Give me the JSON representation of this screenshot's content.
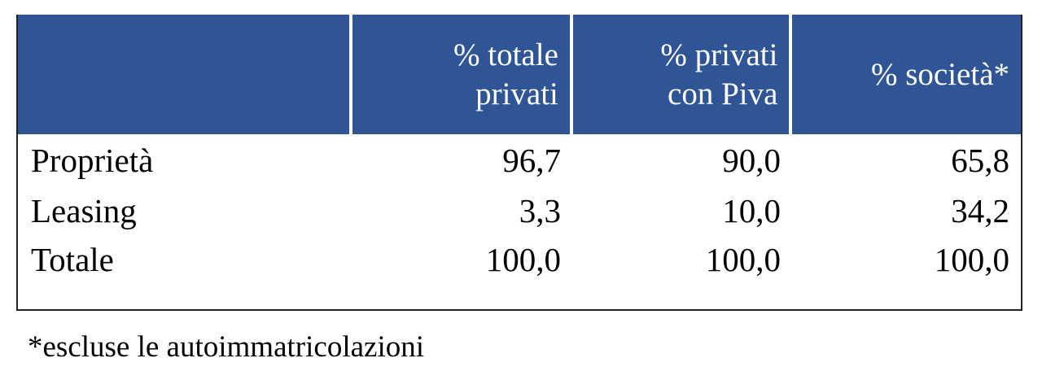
{
  "table": {
    "header": [
      [],
      [
        "% totale",
        "privati"
      ],
      [
        "% privati",
        "con Piva"
      ],
      [
        "% società*"
      ]
    ],
    "rows": [
      [
        "Proprietà",
        "96,7",
        "90,0",
        "65,8"
      ],
      [
        "Leasing",
        "3,3",
        "10,0",
        "34,2"
      ],
      [
        "Totale",
        "100,0",
        "100,0",
        "100,0"
      ]
    ]
  },
  "footnote": "*escluse le autoimmatricolazioni"
}
